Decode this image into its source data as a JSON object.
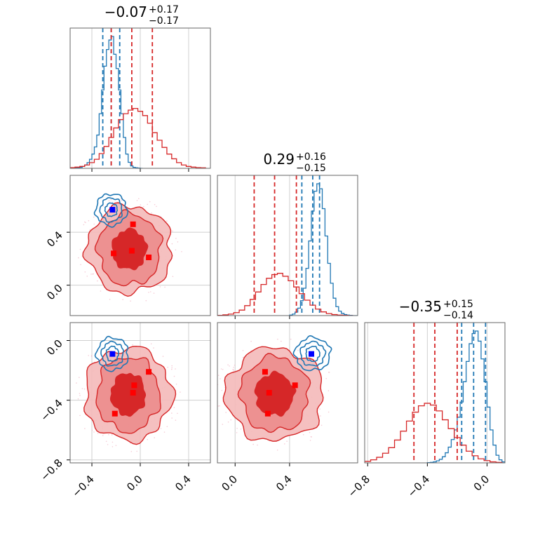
{
  "chart_data": [
    {
      "type": "histogram",
      "panel": "1d-param-1",
      "title": {
        "value": "−0.07",
        "plus": "+0.17",
        "minus": "−0.17"
      },
      "xlim": [
        -0.58,
        0.58
      ],
      "xticks": [
        -0.4,
        0.0,
        0.4
      ],
      "grid": true,
      "series": [
        {
          "color": "#1f77b4",
          "bins": [
            -0.58,
            -0.56,
            -0.54,
            -0.52,
            -0.5,
            -0.48,
            -0.46,
            -0.44,
            -0.42,
            -0.4,
            -0.38,
            -0.36,
            -0.34,
            -0.32,
            -0.3,
            -0.28,
            -0.26,
            -0.24,
            -0.22,
            -0.2,
            -0.18,
            -0.16,
            -0.14,
            -0.12,
            -0.1,
            -0.08,
            -0.06,
            -0.04,
            -0.02,
            0.0,
            0.02
          ],
          "counts": [
            0,
            0,
            1,
            2,
            4,
            8,
            14,
            24,
            38,
            60,
            90,
            140,
            230,
            330,
            430,
            500,
            540,
            555,
            480,
            420,
            330,
            230,
            130,
            60,
            25,
            10,
            4,
            2,
            1,
            0
          ],
          "quantiles": [
            -0.31,
            -0.24,
            -0.17
          ]
        },
        {
          "color": "#d62728",
          "bins": [
            -0.58,
            -0.54,
            -0.5,
            -0.46,
            -0.42,
            -0.38,
            -0.34,
            -0.3,
            -0.26,
            -0.22,
            -0.18,
            -0.14,
            -0.1,
            -0.06,
            -0.02,
            0.02,
            0.06,
            0.1,
            0.14,
            0.18,
            0.22,
            0.26,
            0.3,
            0.34,
            0.38,
            0.42,
            0.46,
            0.5,
            0.54
          ],
          "counts": [
            3,
            5,
            8,
            14,
            24,
            38,
            62,
            92,
            130,
            170,
            205,
            230,
            245,
            252,
            240,
            222,
            190,
            150,
            118,
            88,
            60,
            40,
            24,
            14,
            8,
            5,
            3,
            2
          ],
          "quantiles": [
            -0.24,
            -0.07,
            0.1
          ]
        }
      ]
    },
    {
      "type": "histogram",
      "panel": "1d-param-2",
      "title": {
        "value": "0.29",
        "plus": "+0.16",
        "minus": "−0.15"
      },
      "xlim": [
        -0.13,
        0.9
      ],
      "xticks": [
        0.0,
        0.4
      ],
      "grid": true,
      "series": [
        {
          "color": "#1f77b4",
          "bins": [
            0.4,
            0.42,
            0.44,
            0.46,
            0.48,
            0.5,
            0.52,
            0.54,
            0.56,
            0.58,
            0.6,
            0.62,
            0.64,
            0.66,
            0.68,
            0.7,
            0.72,
            0.74,
            0.76,
            0.78,
            0.8,
            0.82,
            0.84,
            0.86,
            0.88,
            0.9
          ],
          "counts": [
            2,
            6,
            14,
            30,
            60,
            110,
            190,
            300,
            420,
            500,
            530,
            510,
            430,
            320,
            210,
            130,
            70,
            36,
            18,
            9,
            4,
            2,
            1,
            0,
            0
          ],
          "quantiles": [
            0.49,
            0.57,
            0.62
          ]
        },
        {
          "color": "#d62728",
          "bins": [
            -0.13,
            -0.09,
            -0.05,
            -0.01,
            0.03,
            0.07,
            0.11,
            0.15,
            0.19,
            0.23,
            0.27,
            0.31,
            0.35,
            0.39,
            0.43,
            0.47,
            0.51,
            0.55,
            0.59,
            0.63,
            0.67,
            0.71,
            0.75,
            0.79,
            0.83,
            0.87
          ],
          "counts": [
            1,
            3,
            6,
            12,
            22,
            40,
            65,
            95,
            125,
            150,
            165,
            170,
            158,
            140,
            115,
            88,
            62,
            42,
            26,
            15,
            8,
            4,
            2,
            1,
            0
          ],
          "quantiles": [
            0.14,
            0.29,
            0.45
          ]
        }
      ]
    },
    {
      "type": "histogram",
      "panel": "1d-param-3",
      "title": {
        "value": "−0.35",
        "plus": "+0.15",
        "minus": "−0.14"
      },
      "xlim": [
        -0.82,
        0.12
      ],
      "xticks": [
        -0.8,
        -0.4,
        0.0
      ],
      "grid": true,
      "series": [
        {
          "color": "#1f77b4",
          "bins": [
            -0.4,
            -0.38,
            -0.36,
            -0.34,
            -0.32,
            -0.3,
            -0.28,
            -0.26,
            -0.24,
            -0.22,
            -0.2,
            -0.18,
            -0.16,
            -0.14,
            -0.12,
            -0.1,
            -0.08,
            -0.06,
            -0.04,
            -0.02,
            0.0,
            0.02,
            0.04,
            0.06,
            0.08,
            0.1,
            0.12
          ],
          "counts": [
            1,
            2,
            4,
            8,
            14,
            24,
            40,
            62,
            92,
            130,
            180,
            240,
            320,
            400,
            470,
            510,
            520,
            480,
            410,
            320,
            220,
            130,
            70,
            30,
            12,
            4
          ],
          "quantiles": [
            -0.17,
            -0.09,
            -0.01
          ]
        },
        {
          "color": "#d62728",
          "bins": [
            -0.82,
            -0.78,
            -0.74,
            -0.7,
            -0.66,
            -0.62,
            -0.58,
            -0.54,
            -0.5,
            -0.46,
            -0.42,
            -0.38,
            -0.34,
            -0.3,
            -0.26,
            -0.22,
            -0.18,
            -0.14,
            -0.1,
            -0.06,
            -0.02,
            0.02,
            0.06,
            0.1
          ],
          "counts": [
            6,
            12,
            22,
            38,
            60,
            90,
            125,
            165,
            200,
            225,
            235,
            228,
            205,
            170,
            135,
            100,
            70,
            46,
            28,
            16,
            9,
            4,
            2
          ],
          "quantiles": [
            -0.49,
            -0.35,
            -0.2
          ]
        }
      ]
    },
    {
      "type": "scatter",
      "panel": "2d-param-1-vs-param-2",
      "xlim": [
        -0.58,
        0.58
      ],
      "ylim": [
        -0.23,
        0.83
      ],
      "yticks": [
        0.0,
        0.4
      ],
      "grid": true,
      "red_contours": {
        "center": [
          -0.09,
          0.27
        ],
        "radii": [
          [
            0.14,
            0.15
          ],
          [
            0.26,
            0.27
          ],
          [
            0.35,
            0.33
          ]
        ]
      },
      "blue_contours": {
        "center": [
          -0.24,
          0.57
        ],
        "radii": [
          [
            0.05,
            0.05
          ],
          [
            0.09,
            0.09
          ],
          [
            0.13,
            0.12
          ]
        ]
      },
      "red_markers": [
        [
          -0.22,
          0.24
        ],
        [
          -0.07,
          0.26
        ],
        [
          -0.06,
          0.46
        ],
        [
          0.07,
          0.21
        ]
      ],
      "blue_markers": [
        [
          -0.23,
          0.57
        ]
      ]
    },
    {
      "type": "scatter",
      "panel": "2d-param-1-vs-param-3",
      "xlim": [
        -0.58,
        0.58
      ],
      "ylim": [
        -0.82,
        0.12
      ],
      "xticks": [
        -0.4,
        0.0,
        0.4
      ],
      "yticks": [
        -0.8,
        -0.4,
        0.0
      ],
      "grid": true,
      "red_contours": {
        "center": [
          -0.1,
          -0.36
        ],
        "radii": [
          [
            0.14,
            0.14
          ],
          [
            0.26,
            0.25
          ],
          [
            0.36,
            0.31
          ]
        ]
      },
      "blue_contours": {
        "center": [
          -0.23,
          -0.09
        ],
        "radii": [
          [
            0.05,
            0.05
          ],
          [
            0.09,
            0.08
          ],
          [
            0.13,
            0.11
          ]
        ]
      },
      "red_markers": [
        [
          -0.21,
          -0.49
        ],
        [
          -0.06,
          -0.35
        ],
        [
          -0.05,
          -0.3
        ],
        [
          0.07,
          -0.21
        ]
      ],
      "blue_markers": [
        [
          -0.23,
          -0.09
        ]
      ]
    },
    {
      "type": "scatter",
      "panel": "2d-param-2-vs-param-3",
      "xlim": [
        -0.13,
        0.9
      ],
      "ylim": [
        -0.82,
        0.12
      ],
      "xticks": [
        0.0,
        0.4
      ],
      "grid": true,
      "red_contours": {
        "center": [
          0.29,
          -0.36
        ],
        "radii": [
          [
            0.14,
            0.14
          ],
          [
            0.25,
            0.25
          ],
          [
            0.36,
            0.31
          ]
        ]
      },
      "blue_contours": {
        "center": [
          0.57,
          -0.09
        ],
        "radii": [
          [
            0.05,
            0.05
          ],
          [
            0.09,
            0.08
          ],
          [
            0.13,
            0.11
          ]
        ]
      },
      "red_markers": [
        [
          0.22,
          -0.21
        ],
        [
          0.25,
          -0.35
        ],
        [
          0.24,
          -0.49
        ],
        [
          0.44,
          -0.3
        ]
      ],
      "blue_markers": [
        [
          0.56,
          -0.09
        ]
      ]
    }
  ]
}
